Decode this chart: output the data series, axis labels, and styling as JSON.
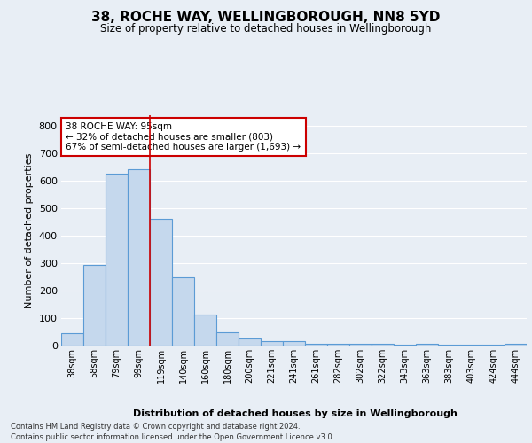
{
  "title_line1": "38, ROCHE WAY, WELLINGBOROUGH, NN8 5YD",
  "title_line2": "Size of property relative to detached houses in Wellingborough",
  "xlabel": "Distribution of detached houses by size in Wellingborough",
  "ylabel": "Number of detached properties",
  "categories": [
    "38sqm",
    "58sqm",
    "79sqm",
    "99sqm",
    "119sqm",
    "140sqm",
    "160sqm",
    "180sqm",
    "200sqm",
    "221sqm",
    "241sqm",
    "261sqm",
    "282sqm",
    "302sqm",
    "322sqm",
    "343sqm",
    "363sqm",
    "383sqm",
    "403sqm",
    "424sqm",
    "444sqm"
  ],
  "values": [
    44,
    294,
    626,
    644,
    462,
    250,
    112,
    47,
    27,
    15,
    15,
    8,
    6,
    8,
    8,
    2,
    8,
    2,
    2,
    2,
    8
  ],
  "bar_color": "#c5d8ed",
  "bar_edge_color": "#5b9bd5",
  "vline_x": 3.5,
  "vline_color": "#cc0000",
  "annotation_text": "38 ROCHE WAY: 95sqm\n← 32% of detached houses are smaller (803)\n67% of semi-detached houses are larger (1,693) →",
  "annotation_box_color": "#ffffff",
  "annotation_box_edge": "#cc0000",
  "ylim": [
    0,
    840
  ],
  "yticks": [
    0,
    100,
    200,
    300,
    400,
    500,
    600,
    700,
    800
  ],
  "footer": "Contains HM Land Registry data © Crown copyright and database right 2024.\nContains public sector information licensed under the Open Government Licence v3.0.",
  "bg_color": "#e8eef5",
  "plot_bg_color": "#e8eef5",
  "grid_color": "#ffffff"
}
